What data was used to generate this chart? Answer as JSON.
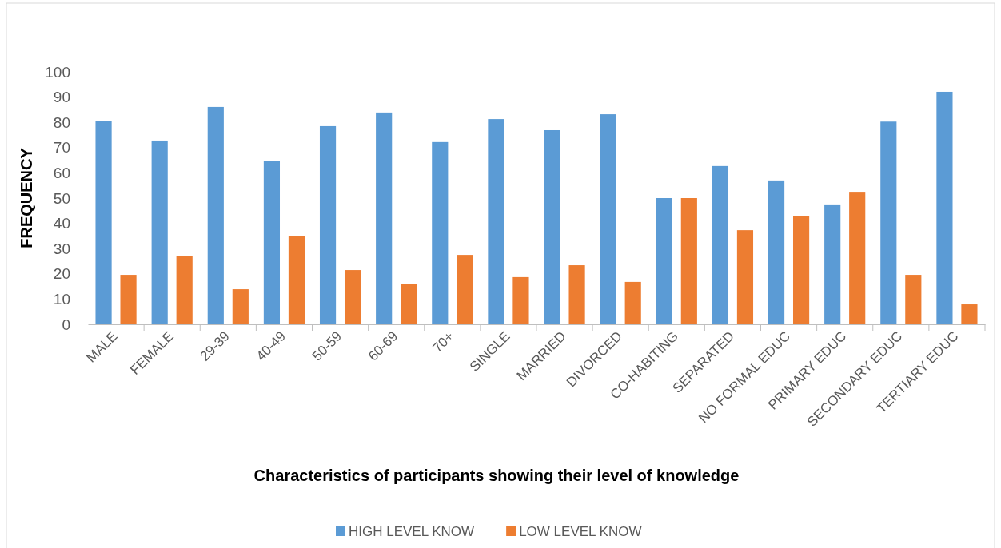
{
  "chart_data": {
    "type": "bar",
    "xlabel": "Characteristics of participants showing their level of knowledge",
    "ylabel": "FREQUENCY",
    "categories": [
      "MALE",
      "FEMALE",
      "29-39",
      "40-49",
      "50-59",
      "60-69",
      "70+",
      "SINGLE",
      "MARRIED",
      "DIVORCED",
      "CO-HABITING",
      "SEPARATED",
      "NO FORMAL EDUC",
      "PRIMARY EDUC",
      "SECONDARY EDUC",
      "TERTIARY EDUC"
    ],
    "series": [
      {
        "name": "HIGH LEVEL KNOW",
        "color": "#5b9bd5",
        "values": [
          80.5,
          72.8,
          86.1,
          64.6,
          78.5,
          83.9,
          72.2,
          81.3,
          76.9,
          83.2,
          50,
          62.7,
          57,
          47.5,
          80.3,
          92.1
        ]
      },
      {
        "name": "LOW LEVEL KNOW",
        "color": "#ed7d31",
        "values": [
          19.6,
          27.2,
          13.9,
          35.1,
          21.5,
          16.1,
          27.5,
          18.7,
          23.4,
          16.8,
          50,
          37.3,
          42.8,
          52.5,
          19.6,
          7.9
        ]
      }
    ],
    "ylim": [
      0,
      100
    ],
    "yticks": [
      0,
      10,
      20,
      30,
      40,
      50,
      60,
      70,
      80,
      90,
      100
    ],
    "grid": false,
    "legend": "bottom"
  }
}
